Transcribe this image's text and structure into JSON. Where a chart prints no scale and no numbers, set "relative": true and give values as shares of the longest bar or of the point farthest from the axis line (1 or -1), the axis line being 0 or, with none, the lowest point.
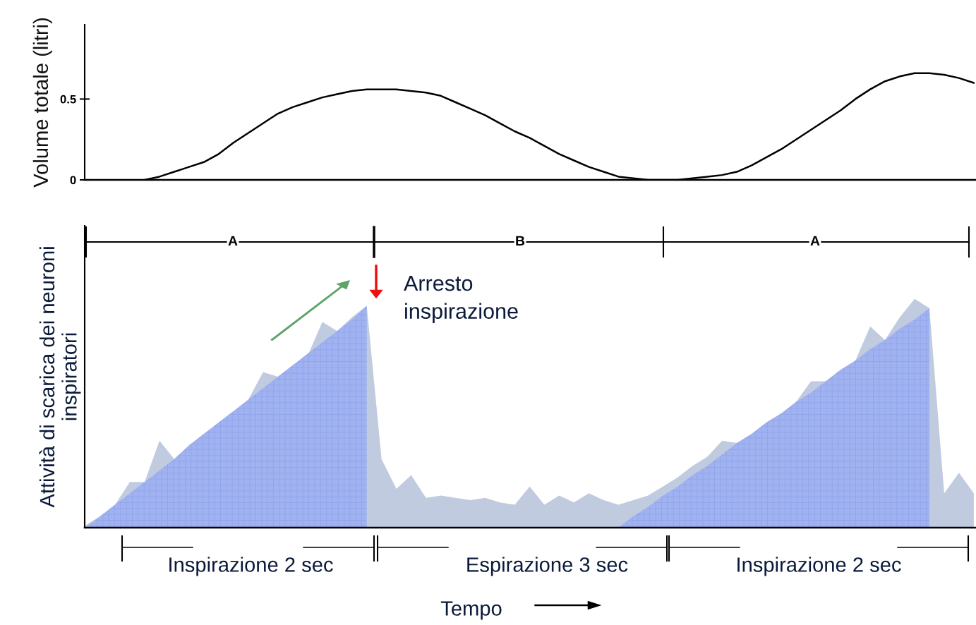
{
  "chart_data": [
    {
      "type": "line",
      "ylabel": "Volume totale (litri)",
      "categories": [
        null,
        null,
        null,
        null,
        null,
        null,
        null,
        null,
        null,
        null,
        null,
        null,
        null,
        null,
        null,
        null,
        null,
        null,
        null,
        null,
        null,
        null,
        null,
        null,
        null,
        null,
        null,
        null,
        null,
        null,
        null,
        null,
        null,
        null,
        null,
        null,
        null,
        null,
        null,
        null,
        null,
        null,
        null,
        null,
        null,
        null,
        null,
        null,
        null,
        null,
        null,
        null,
        null,
        null,
        null,
        null,
        null,
        null,
        null,
        null,
        null
      ],
      "series": [
        {
          "color": "#000000",
          "values": [
            null,
            null,
            null,
            null,
            0,
            0.02,
            0.05,
            0.08,
            0.11,
            0.16,
            0.23,
            0.29,
            0.35,
            0.41,
            0.45,
            0.48,
            0.51,
            0.53,
            0.55,
            0.56,
            0.56,
            0.56,
            0.55,
            0.54,
            0.52,
            0.48,
            0.44,
            0.4,
            0.35,
            0.3,
            0.26,
            0.21,
            0.16,
            0.12,
            0.08,
            0.05,
            0.02,
            0.01,
            0,
            0,
            0,
            0.01,
            0.02,
            0.03,
            0.05,
            0.09,
            0.14,
            0.19,
            0.25,
            0.31,
            0.37,
            0.43,
            0.5,
            0.56,
            0.61,
            0.64,
            0.66,
            0.66,
            0.65,
            0.63,
            0.6
          ]
        }
      ],
      "ylim": [
        0,
        0.96
      ],
      "yticks": [
        0,
        0.5
      ],
      "tick_labels": "y",
      "grid": false,
      "legend": false
    },
    {
      "type": "area",
      "relative": true,
      "ylabel": "Attività di scarica dei neuroni\ninspiratori",
      "categories": [
        null,
        null,
        null,
        null,
        null,
        null,
        null,
        null,
        null,
        null,
        null,
        null,
        null,
        null,
        null,
        null,
        null,
        null,
        null,
        null,
        null,
        null,
        null,
        null,
        null,
        null,
        null,
        null,
        null,
        null,
        null,
        null,
        null,
        null,
        null,
        null,
        null,
        null,
        null,
        null,
        null,
        null,
        null,
        null,
        null,
        null,
        null,
        null,
        null,
        null,
        null,
        null,
        null,
        null,
        null,
        null,
        null,
        null,
        null,
        null,
        null
      ],
      "series": [
        {
          "color": "#c0cbe0",
          "values": [
            0.01,
            0.05,
            0.1,
            0.2,
            0.2,
            0.38,
            0.3,
            0.36,
            0.41,
            0.45,
            0.5,
            0.56,
            0.68,
            0.66,
            0.71,
            0.75,
            0.9,
            0.86,
            0.92,
            0.97,
            0.3,
            0.17,
            0.23,
            0.13,
            0.14,
            0.13,
            0.12,
            0.13,
            0.11,
            0.1,
            0.18,
            0.1,
            0.14,
            0.11,
            0.15,
            0.12,
            0.1,
            0.12,
            0.14,
            0.18,
            0.22,
            0.27,
            0.31,
            0.38,
            0.37,
            0.41,
            0.46,
            0.5,
            0.55,
            0.64,
            0.64,
            0.69,
            0.73,
            0.88,
            0.82,
            0.92,
            1.0,
            0.96,
            0.15,
            0.24,
            0.15
          ]
        },
        {
          "color": "#a0b2f0",
          "values": [
            0,
            0.05,
            0.1,
            0.15,
            0.2,
            0.25,
            0.3,
            0.36,
            0.41,
            0.46,
            0.51,
            0.56,
            0.61,
            0.66,
            0.71,
            0.76,
            0.81,
            0.86,
            0.91,
            0.97,
            null,
            null,
            null,
            null,
            null,
            null,
            null,
            null,
            null,
            null,
            null,
            null,
            null,
            null,
            null,
            null,
            0,
            0.05,
            0.09,
            0.14,
            0.18,
            0.23,
            0.27,
            0.32,
            0.37,
            0.41,
            0.46,
            0.5,
            0.55,
            0.59,
            0.64,
            0.69,
            0.73,
            0.78,
            0.82,
            0.87,
            0.91,
            0.96,
            null,
            null,
            null
          ]
        }
      ],
      "annotations": [
        "A",
        "B",
        "A",
        "Arresto\ninspirazione",
        "Inspirazione 2 sec",
        "Espirazione 3 sec",
        "Inspirazione 2 sec",
        "Tempo"
      ],
      "grid": false,
      "legend": false
    }
  ]
}
